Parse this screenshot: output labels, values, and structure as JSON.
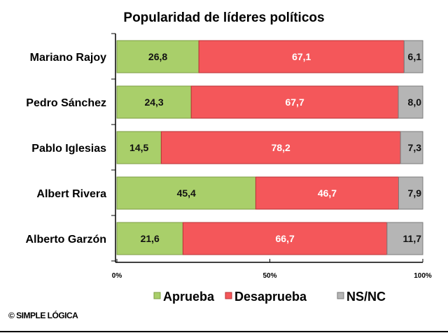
{
  "chart_data": {
    "type": "bar",
    "orientation": "horizontal",
    "stacked": true,
    "title": "Popularidad de líderes políticos",
    "categories": [
      "Mariano Rajoy",
      "Pedro Sánchez",
      "Pablo Iglesias",
      "Albert Rivera",
      "Alberto Garzón"
    ],
    "series": [
      {
        "name": "Aprueba",
        "color": "#a9cf6a",
        "values": [
          26.8,
          24.3,
          14.5,
          45.4,
          21.6
        ],
        "labels": [
          "26,8",
          "24,3",
          "14,5",
          "45,4",
          "21,6"
        ]
      },
      {
        "name": "Desaprueba",
        "color": "#f4575a",
        "values": [
          67.1,
          67.7,
          78.2,
          46.7,
          66.7
        ],
        "labels": [
          "67,1",
          "67,7",
          "78,2",
          "46,7",
          "66,7"
        ]
      },
      {
        "name": "NS/NC",
        "color": "#b5b5b5",
        "values": [
          6.1,
          8.0,
          7.3,
          7.9,
          11.7
        ],
        "labels": [
          "6,1",
          "8,0",
          "7,3",
          "7,9",
          "11,7"
        ]
      }
    ],
    "xticks": [
      "0%",
      "50%",
      "100%"
    ],
    "xlim": [
      0,
      100
    ],
    "legend": "bottom",
    "grid": false
  },
  "footer": {
    "copyright": "© SIMPLE LÓGICA"
  }
}
